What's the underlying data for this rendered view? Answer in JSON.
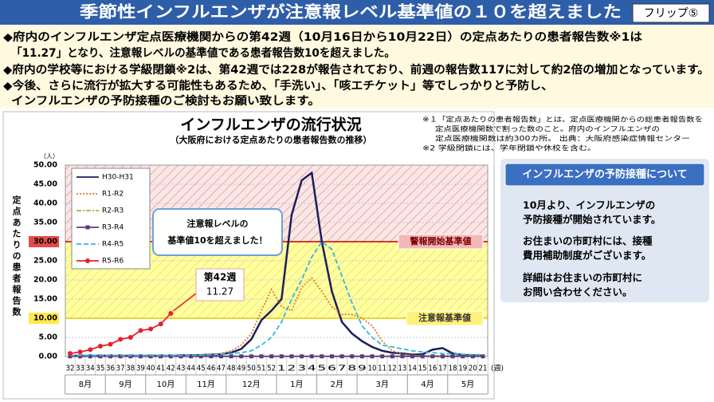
{
  "header": {
    "title": "季節性インフルエンザが注意報レベル基準値の１０を超えました",
    "flip": "フリップ⑤"
  },
  "bullets": [
    "◆府内のインフルエンザ定点医療機関からの第42週（10月16日から10月22日）の定点あたりの患者報告数※1は",
    "「11.27」となり、注意報レベルの基準値である患者報告数10を超えました。",
    "◆府内の学校等における学級閉鎖※2は、第42週では228が報告されており、前週の報告数117に対して約2倍の増加となっています。",
    "◆今後、さらに流行が拡大する可能性もあるため、「手洗い」、「咳エチケット」等でしっかりと予防し、",
    "インフルエンザの予防接種のご検討もお願い致します。"
  ],
  "notes": [
    "※１「定点あたりの患者報告数」とは、定点医療機関からの総患者報告数を",
    "定点医療機関数で割った数のこと。府内のインフルエンザの",
    "定点医療機関数は約300カ所。 出典：大阪府感染症情報センター",
    "※2 学級閉鎖には、学年閉鎖や休校を含む。"
  ],
  "sidebar": {
    "title": "インフルエンザの予防接種について",
    "lines": [
      "10月より、インフルエンザの",
      "予防接種が開始されています。",
      "お住まいの市町村には、接種",
      "費用補助制度がございます。",
      "詳細はお住まいの市町村に",
      "お問い合わせください。"
    ]
  },
  "chart_data": {
    "type": "line",
    "title": "インフルエンザの流行状況",
    "subtitle": "（大阪府における定点あたりの患者報告数の推移）",
    "y_unit": "（人）",
    "y_label": "定点あたりの患者報告数",
    "x_unit": "(週)",
    "categories": [
      "32",
      "33",
      "34",
      "35",
      "36",
      "37",
      "38",
      "39",
      "40",
      "41",
      "42",
      "43",
      "44",
      "45",
      "46",
      "47",
      "48",
      "49",
      "50",
      "51",
      "52",
      "1",
      "2",
      "3",
      "4",
      "5",
      "6",
      "7",
      "8",
      "9",
      "10",
      "11",
      "12",
      "13",
      "14",
      "15",
      "16",
      "17",
      "18",
      "19",
      "20",
      "21"
    ],
    "months": [
      {
        "name": "8月",
        "from": 32,
        "to": 35
      },
      {
        "name": "9月",
        "from": 36,
        "to": 39
      },
      {
        "name": "10月",
        "from": 40,
        "to": 43
      },
      {
        "name": "11月",
        "from": 44,
        "to": 47
      },
      {
        "name": "12月",
        "from": 48,
        "to": 52
      },
      {
        "name": "1月",
        "from": 1,
        "to": 4
      },
      {
        "name": "2月",
        "from": 5,
        "to": 8
      },
      {
        "name": "3月",
        "from": 9,
        "to": 13
      },
      {
        "name": "4月",
        "from": 14,
        "to": 17
      },
      {
        "name": "5月",
        "from": 18,
        "to": 21
      }
    ],
    "ylim": [
      0,
      50
    ],
    "yticks": [
      {
        "value": 0,
        "label": "0.00"
      },
      {
        "value": 5,
        "label": "5.00"
      },
      {
        "value": 10,
        "label": "10.00"
      },
      {
        "value": 15,
        "label": "15.00"
      },
      {
        "value": 20,
        "label": "20.00"
      },
      {
        "value": 25,
        "label": "25.00"
      },
      {
        "value": 30,
        "label": "30.00"
      },
      {
        "value": 35,
        "label": "35.00"
      },
      {
        "value": 40,
        "label": "40.00"
      },
      {
        "value": 45,
        "label": "45.00"
      },
      {
        "value": 50,
        "label": "50.00"
      }
    ],
    "grid": true,
    "thresholds": [
      {
        "value": 30,
        "label": "警報開始基準値",
        "color": "#c00000"
      },
      {
        "value": 10,
        "label": "注意報基準値",
        "color": "#e6c800"
      }
    ],
    "series": [
      {
        "name": "H30-H31",
        "color": "#1a1f5e",
        "style": "solid",
        "values": [
          0.2,
          0.2,
          0.2,
          0.2,
          0.2,
          0.2,
          0.2,
          0.2,
          0.2,
          0.2,
          0.2,
          0.3,
          0.3,
          0.4,
          0.5,
          0.6,
          1.0,
          2.0,
          4.5,
          9.5,
          12,
          15,
          37,
          46,
          48,
          30,
          17,
          9,
          6,
          4,
          2.5,
          1.5,
          1,
          0.8,
          0.5,
          0.6,
          1.8,
          2.2,
          0.8,
          0.4,
          0.3,
          0.2
        ]
      },
      {
        "name": "R1-R2",
        "color": "#e07b20",
        "style": "dotted",
        "values": [
          0.3,
          0.3,
          0.3,
          0.3,
          0.3,
          0.3,
          0.3,
          0.3,
          0.3,
          0.3,
          0.3,
          0.3,
          0.3,
          0.3,
          0.5,
          0.8,
          1.5,
          3,
          6,
          12,
          17.5,
          13,
          12,
          18,
          20.5,
          17,
          13,
          11,
          11,
          10,
          8,
          4,
          1.5,
          0.6,
          0.3,
          0.2,
          0.2,
          0.2,
          0.2,
          0.2,
          0.2,
          0.2
        ]
      },
      {
        "name": "R2-R3",
        "color": "#8fbc3f",
        "style": "dashdot",
        "values": [
          0.1,
          0.1,
          0.1,
          0.1,
          0.1,
          0.1,
          0.1,
          0.1,
          0.1,
          0.1,
          0.1,
          0.1,
          0.1,
          0.1,
          0.1,
          0.1,
          0.1,
          0.1,
          0.1,
          0.1,
          0.1,
          0.1,
          0.1,
          0.1,
          0.1,
          0.1,
          0.1,
          0.1,
          0.1,
          0.1,
          0.1,
          0.1,
          0.1,
          0.1,
          0.1,
          0.1,
          0.1,
          0.1,
          0.1,
          0.1,
          0.1,
          0.1
        ]
      },
      {
        "name": "R3-R4",
        "color": "#5b3b7a",
        "style": "solid",
        "marker": "square",
        "values": [
          0.05,
          0.05,
          0.05,
          0.05,
          0.05,
          0.05,
          0.05,
          0.05,
          0.05,
          0.05,
          0.05,
          0.05,
          0.05,
          0.05,
          0.05,
          0.05,
          0.05,
          0.05,
          0.05,
          0.05,
          0.05,
          0.05,
          0.05,
          0.05,
          0.05,
          0.05,
          0.05,
          0.05,
          0.05,
          0.05,
          0.05,
          0.05,
          0.05,
          0.05,
          0.05,
          0.05,
          0.05,
          0.05,
          0.05,
          0.05,
          0.05,
          0.05
        ]
      },
      {
        "name": "R4-R5",
        "color": "#33b5e5",
        "style": "dashed",
        "values": [
          0.3,
          0.3,
          0.3,
          0.3,
          0.3,
          0.3,
          0.3,
          0.3,
          0.3,
          0.3,
          0.3,
          0.3,
          0.3,
          0.4,
          0.5,
          0.6,
          0.8,
          1,
          1.5,
          3,
          5,
          9,
          15,
          20,
          26,
          30,
          28,
          21,
          14,
          8,
          5,
          3,
          2.5,
          2,
          1.5,
          1.2,
          1,
          0.8,
          0.7,
          0.6,
          0.5,
          0.5
        ]
      },
      {
        "name": "R5-R6",
        "color": "#e8202a",
        "style": "solid",
        "marker": "circle",
        "values": [
          0.8,
          1.2,
          1.8,
          2.7,
          3.2,
          4.5,
          5,
          6.8,
          7.2,
          8.5,
          11.27,
          null,
          null,
          null,
          null,
          null,
          null,
          null,
          null,
          null,
          null,
          null,
          null,
          null,
          null,
          null,
          null,
          null,
          null,
          null,
          null,
          null,
          null,
          null,
          null,
          null,
          null,
          null,
          null,
          null,
          null,
          null
        ]
      }
    ],
    "callout": [
      "注意報レベルの",
      "基準値10を超えました！"
    ],
    "point_label": {
      "title": "第42週",
      "series": 5,
      "index": 10
    }
  }
}
